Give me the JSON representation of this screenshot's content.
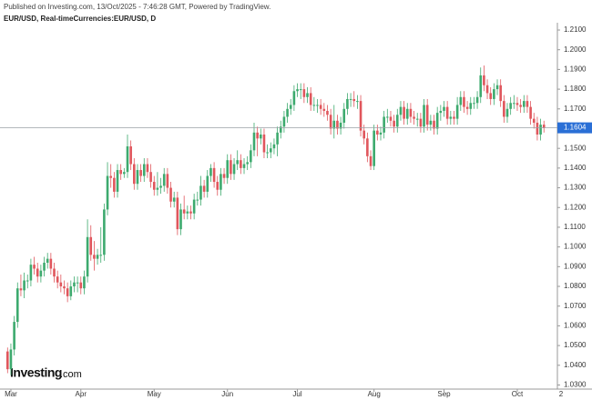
{
  "chart_data": {
    "type": "candlestick",
    "header": "Published on Investing.com, 13/Oct/2025 - 7:46:28 GMT, Powered by TradingView.",
    "title": "EUR/USD, Real-timeCurrencies:EUR/USD, D",
    "logo": "Investing",
    "logo_suffix": ".com",
    "up_color": "#3daa6e",
    "down_color": "#e0565c",
    "last_price_color": "#2a6fd6",
    "last_price": 1.1604,
    "ylim": [
      1.027,
      1.216
    ],
    "yticks": [
      {
        "value": 1.21,
        "label": "1.2100"
      },
      {
        "value": 1.2,
        "label": "1.2000"
      },
      {
        "value": 1.19,
        "label": "1.1900"
      },
      {
        "value": 1.18,
        "label": "1.1800"
      },
      {
        "value": 1.17,
        "label": "1.1700"
      },
      {
        "value": 1.16,
        "label": "1.1600"
      },
      {
        "value": 1.15,
        "label": "1.1500"
      },
      {
        "value": 1.14,
        "label": "1.1400"
      },
      {
        "value": 1.13,
        "label": "1.1300"
      },
      {
        "value": 1.12,
        "label": "1.1200"
      },
      {
        "value": 1.11,
        "label": "1.1100"
      },
      {
        "value": 1.1,
        "label": "1.1000"
      },
      {
        "value": 1.09,
        "label": "1.0900"
      },
      {
        "value": 1.08,
        "label": "1.0800"
      },
      {
        "value": 1.07,
        "label": "1.0700"
      },
      {
        "value": 1.06,
        "label": "1.0600"
      },
      {
        "value": 1.05,
        "label": "1.0500"
      },
      {
        "value": 1.04,
        "label": "1.0400"
      },
      {
        "value": 1.03,
        "label": "1.0300"
      }
    ],
    "x_edge_label": "2",
    "categories": [
      null,
      "Mar",
      null,
      null,
      null,
      null,
      null,
      null,
      null,
      null,
      null,
      null,
      null,
      null,
      null,
      null,
      null,
      null,
      null,
      null,
      null,
      null,
      "Apr",
      null,
      null,
      null,
      null,
      null,
      null,
      null,
      null,
      null,
      null,
      null,
      null,
      null,
      null,
      null,
      null,
      null,
      null,
      null,
      null,
      null,
      "May",
      null,
      null,
      null,
      null,
      null,
      null,
      null,
      null,
      null,
      null,
      null,
      null,
      null,
      null,
      null,
      null,
      null,
      null,
      null,
      null,
      null,
      "Jun",
      null,
      null,
      null,
      null,
      null,
      null,
      null,
      null,
      null,
      null,
      null,
      null,
      null,
      null,
      null,
      null,
      null,
      null,
      null,
      null,
      "Jul",
      null,
      null,
      null,
      null,
      null,
      null,
      null,
      null,
      null,
      null,
      null,
      null,
      null,
      null,
      null,
      null,
      null,
      null,
      null,
      null,
      null,
      null,
      "Aug",
      null,
      null,
      null,
      null,
      null,
      null,
      null,
      null,
      null,
      null,
      null,
      null,
      null,
      null,
      null,
      null,
      null,
      null,
      null,
      null,
      "Sep",
      null,
      null,
      null,
      null,
      null,
      null,
      null,
      null,
      null,
      null,
      null,
      null,
      null,
      null,
      null,
      null,
      null,
      null,
      null,
      null,
      null,
      "Oct",
      null,
      null,
      null,
      null,
      null,
      null,
      null,
      null
    ],
    "ohlc": [
      [
        1.047,
        1.049,
        1.036,
        1.038
      ],
      [
        1.038,
        1.051,
        1.035,
        1.048
      ],
      [
        1.048,
        1.065,
        1.045,
        1.062
      ],
      [
        1.062,
        1.082,
        1.059,
        1.079
      ],
      [
        1.079,
        1.086,
        1.075,
        1.078
      ],
      [
        1.078,
        1.087,
        1.074,
        1.083
      ],
      [
        1.083,
        1.086,
        1.079,
        1.083
      ],
      [
        1.083,
        1.094,
        1.08,
        1.091
      ],
      [
        1.091,
        1.095,
        1.086,
        1.089
      ],
      [
        1.089,
        1.092,
        1.082,
        1.085
      ],
      [
        1.085,
        1.091,
        1.082,
        1.088
      ],
      [
        1.088,
        1.095,
        1.085,
        1.092
      ],
      [
        1.092,
        1.097,
        1.089,
        1.094
      ],
      [
        1.094,
        1.097,
        1.086,
        1.089
      ],
      [
        1.089,
        1.092,
        1.082,
        1.085
      ],
      [
        1.085,
        1.088,
        1.079,
        1.082
      ],
      [
        1.082,
        1.086,
        1.077,
        1.08
      ],
      [
        1.08,
        1.083,
        1.076,
        1.079
      ],
      [
        1.079,
        1.082,
        1.072,
        1.075
      ],
      [
        1.075,
        1.083,
        1.073,
        1.08
      ],
      [
        1.08,
        1.085,
        1.077,
        1.082
      ],
      [
        1.082,
        1.085,
        1.077,
        1.082
      ],
      [
        1.082,
        1.085,
        1.076,
        1.079
      ],
      [
        1.079,
        1.088,
        1.076,
        1.085
      ],
      [
        1.085,
        1.114,
        1.082,
        1.105
      ],
      [
        1.105,
        1.111,
        1.093,
        1.096
      ],
      [
        1.096,
        1.103,
        1.088,
        1.094
      ],
      [
        1.094,
        1.099,
        1.091,
        1.096
      ],
      [
        1.096,
        1.11,
        1.092,
        1.096
      ],
      [
        1.096,
        1.122,
        1.093,
        1.119
      ],
      [
        1.119,
        1.143,
        1.116,
        1.136
      ],
      [
        1.136,
        1.142,
        1.13,
        1.135
      ],
      [
        1.135,
        1.138,
        1.125,
        1.128
      ],
      [
        1.128,
        1.142,
        1.125,
        1.139
      ],
      [
        1.139,
        1.142,
        1.134,
        1.137
      ],
      [
        1.137,
        1.14,
        1.135,
        1.138
      ],
      [
        1.138,
        1.157,
        1.135,
        1.151
      ],
      [
        1.151,
        1.154,
        1.139,
        1.142
      ],
      [
        1.142,
        1.145,
        1.129,
        1.132
      ],
      [
        1.132,
        1.142,
        1.129,
        1.139
      ],
      [
        1.139,
        1.142,
        1.133,
        1.136
      ],
      [
        1.136,
        1.145,
        1.133,
        1.142
      ],
      [
        1.142,
        1.145,
        1.135,
        1.138
      ],
      [
        1.138,
        1.142,
        1.13,
        1.133
      ],
      [
        1.133,
        1.136,
        1.126,
        1.129
      ],
      [
        1.129,
        1.138,
        1.126,
        1.13
      ],
      [
        1.13,
        1.135,
        1.127,
        1.131
      ],
      [
        1.131,
        1.14,
        1.128,
        1.137
      ],
      [
        1.137,
        1.14,
        1.127,
        1.13
      ],
      [
        1.13,
        1.133,
        1.12,
        1.123
      ],
      [
        1.123,
        1.128,
        1.12,
        1.125
      ],
      [
        1.125,
        1.128,
        1.106,
        1.109
      ],
      [
        1.109,
        1.122,
        1.106,
        1.119
      ],
      [
        1.119,
        1.126,
        1.114,
        1.117
      ],
      [
        1.117,
        1.121,
        1.114,
        1.118
      ],
      [
        1.118,
        1.121,
        1.114,
        1.117
      ],
      [
        1.117,
        1.127,
        1.114,
        1.124
      ],
      [
        1.124,
        1.128,
        1.121,
        1.124
      ],
      [
        1.124,
        1.136,
        1.121,
        1.131
      ],
      [
        1.131,
        1.134,
        1.125,
        1.128
      ],
      [
        1.128,
        1.139,
        1.125,
        1.136
      ],
      [
        1.136,
        1.142,
        1.133,
        1.14
      ],
      [
        1.14,
        1.143,
        1.13,
        1.133
      ],
      [
        1.133,
        1.136,
        1.126,
        1.129
      ],
      [
        1.129,
        1.14,
        1.126,
        1.137
      ],
      [
        1.137,
        1.14,
        1.132,
        1.135
      ],
      [
        1.135,
        1.147,
        1.132,
        1.144
      ],
      [
        1.144,
        1.147,
        1.134,
        1.137
      ],
      [
        1.137,
        1.145,
        1.134,
        1.142
      ],
      [
        1.142,
        1.149,
        1.139,
        1.144
      ],
      [
        1.144,
        1.147,
        1.137,
        1.14
      ],
      [
        1.14,
        1.145,
        1.137,
        1.142
      ],
      [
        1.142,
        1.146,
        1.139,
        1.143
      ],
      [
        1.143,
        1.152,
        1.14,
        1.149
      ],
      [
        1.149,
        1.163,
        1.146,
        1.158
      ],
      [
        1.158,
        1.161,
        1.146,
        1.155
      ],
      [
        1.155,
        1.16,
        1.152,
        1.157
      ],
      [
        1.157,
        1.16,
        1.145,
        1.148
      ],
      [
        1.148,
        1.152,
        1.145,
        1.148
      ],
      [
        1.148,
        1.153,
        1.145,
        1.15
      ],
      [
        1.15,
        1.155,
        1.147,
        1.152
      ],
      [
        1.152,
        1.161,
        1.146,
        1.158
      ],
      [
        1.158,
        1.164,
        1.155,
        1.161
      ],
      [
        1.161,
        1.169,
        1.158,
        1.166
      ],
      [
        1.166,
        1.173,
        1.163,
        1.17
      ],
      [
        1.17,
        1.175,
        1.167,
        1.172
      ],
      [
        1.172,
        1.182,
        1.169,
        1.179
      ],
      [
        1.179,
        1.183,
        1.176,
        1.18
      ],
      [
        1.18,
        1.183,
        1.175,
        1.18
      ],
      [
        1.18,
        1.183,
        1.173,
        1.176
      ],
      [
        1.176,
        1.181,
        1.173,
        1.178
      ],
      [
        1.178,
        1.181,
        1.169,
        1.172
      ],
      [
        1.172,
        1.176,
        1.169,
        1.172
      ],
      [
        1.172,
        1.175,
        1.168,
        1.172
      ],
      [
        1.172,
        1.175,
        1.167,
        1.17
      ],
      [
        1.17,
        1.173,
        1.166,
        1.169
      ],
      [
        1.169,
        1.172,
        1.164,
        1.167
      ],
      [
        1.167,
        1.17,
        1.157,
        1.16
      ],
      [
        1.16,
        1.172,
        1.155,
        1.164
      ],
      [
        1.164,
        1.167,
        1.157,
        1.16
      ],
      [
        1.16,
        1.166,
        1.157,
        1.163
      ],
      [
        1.163,
        1.173,
        1.16,
        1.17
      ],
      [
        1.17,
        1.178,
        1.167,
        1.175
      ],
      [
        1.175,
        1.178,
        1.171,
        1.175
      ],
      [
        1.175,
        1.179,
        1.171,
        1.174
      ],
      [
        1.174,
        1.177,
        1.17,
        1.174
      ],
      [
        1.174,
        1.177,
        1.156,
        1.159
      ],
      [
        1.159,
        1.162,
        1.152,
        1.155
      ],
      [
        1.155,
        1.158,
        1.143,
        1.146
      ],
      [
        1.146,
        1.149,
        1.139,
        1.141
      ],
      [
        1.141,
        1.162,
        1.139,
        1.159
      ],
      [
        1.159,
        1.162,
        1.154,
        1.157
      ],
      [
        1.157,
        1.161,
        1.154,
        1.158
      ],
      [
        1.158,
        1.169,
        1.155,
        1.166
      ],
      [
        1.166,
        1.17,
        1.163,
        1.166
      ],
      [
        1.166,
        1.169,
        1.161,
        1.164
      ],
      [
        1.164,
        1.167,
        1.158,
        1.161
      ],
      [
        1.161,
        1.17,
        1.158,
        1.167
      ],
      [
        1.167,
        1.174,
        1.164,
        1.171
      ],
      [
        1.171,
        1.174,
        1.162,
        1.165
      ],
      [
        1.165,
        1.173,
        1.162,
        1.17
      ],
      [
        1.17,
        1.173,
        1.163,
        1.166
      ],
      [
        1.166,
        1.169,
        1.162,
        1.165
      ],
      [
        1.165,
        1.168,
        1.161,
        1.165
      ],
      [
        1.165,
        1.168,
        1.158,
        1.161
      ],
      [
        1.161,
        1.175,
        1.158,
        1.172
      ],
      [
        1.172,
        1.175,
        1.159,
        1.162
      ],
      [
        1.162,
        1.167,
        1.159,
        1.164
      ],
      [
        1.164,
        1.167,
        1.157,
        1.16
      ],
      [
        1.16,
        1.171,
        1.157,
        1.168
      ],
      [
        1.168,
        1.172,
        1.164,
        1.169
      ],
      [
        1.169,
        1.174,
        1.166,
        1.171
      ],
      [
        1.171,
        1.174,
        1.162,
        1.165
      ],
      [
        1.165,
        1.169,
        1.162,
        1.166
      ],
      [
        1.166,
        1.169,
        1.162,
        1.165
      ],
      [
        1.165,
        1.176,
        1.162,
        1.172
      ],
      [
        1.172,
        1.179,
        1.169,
        1.176
      ],
      [
        1.176,
        1.179,
        1.168,
        1.171
      ],
      [
        1.171,
        1.174,
        1.167,
        1.17
      ],
      [
        1.17,
        1.176,
        1.167,
        1.173
      ],
      [
        1.173,
        1.176,
        1.17,
        1.173
      ],
      [
        1.173,
        1.179,
        1.17,
        1.176
      ],
      [
        1.176,
        1.191,
        1.173,
        1.187
      ],
      [
        1.187,
        1.192,
        1.179,
        1.182
      ],
      [
        1.182,
        1.185,
        1.175,
        1.178
      ],
      [
        1.178,
        1.181,
        1.172,
        1.175
      ],
      [
        1.175,
        1.183,
        1.172,
        1.18
      ],
      [
        1.18,
        1.185,
        1.177,
        1.182
      ],
      [
        1.182,
        1.185,
        1.171,
        1.174
      ],
      [
        1.174,
        1.177,
        1.163,
        1.166
      ],
      [
        1.166,
        1.173,
        1.163,
        1.17
      ],
      [
        1.17,
        1.176,
        1.167,
        1.173
      ],
      [
        1.173,
        1.177,
        1.17,
        1.173
      ],
      [
        1.173,
        1.176,
        1.169,
        1.172
      ],
      [
        1.172,
        1.175,
        1.168,
        1.171
      ],
      [
        1.171,
        1.177,
        1.168,
        1.174
      ],
      [
        1.174,
        1.177,
        1.168,
        1.171
      ],
      [
        1.171,
        1.174,
        1.162,
        1.165
      ],
      [
        1.165,
        1.168,
        1.16,
        1.163
      ],
      [
        1.163,
        1.166,
        1.154,
        1.157
      ],
      [
        1.157,
        1.165,
        1.154,
        1.162
      ],
      [
        1.162,
        1.164,
        1.158,
        1.1604
      ]
    ]
  }
}
